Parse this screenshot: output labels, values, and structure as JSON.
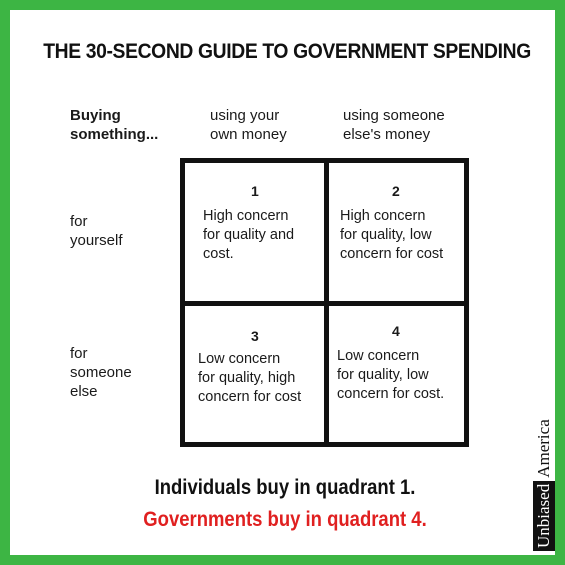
{
  "title": "THE 30-SECOND GUIDE TO GOVERNMENT SPENDING",
  "table": {
    "corner_label": "Buying\nsomething...",
    "columns": [
      "using your\nown money",
      "using someone\nelse's money"
    ],
    "rows": [
      "for\nyourself",
      "for\nsomeone\nelse"
    ],
    "quadrants": [
      {
        "number": "1",
        "text": "High concern\nfor quality and\ncost."
      },
      {
        "number": "2",
        "text": "High concern\nfor quality, low\nconcern for cost"
      },
      {
        "number": "3",
        "text": "Low concern\nfor quality, high\nconcern for cost"
      },
      {
        "number": "4",
        "text": "Low concern\nfor quality, low\nconcern for cost."
      }
    ]
  },
  "conclusion": {
    "line1": "Individuals buy in quadrant 1.",
    "line2": "Governments buy in quadrant 4."
  },
  "watermark": {
    "boxed": "Unbiased",
    "rest": "America"
  },
  "colors": {
    "border": "#3db544",
    "highlight": "#e02020",
    "text": "#111111"
  }
}
